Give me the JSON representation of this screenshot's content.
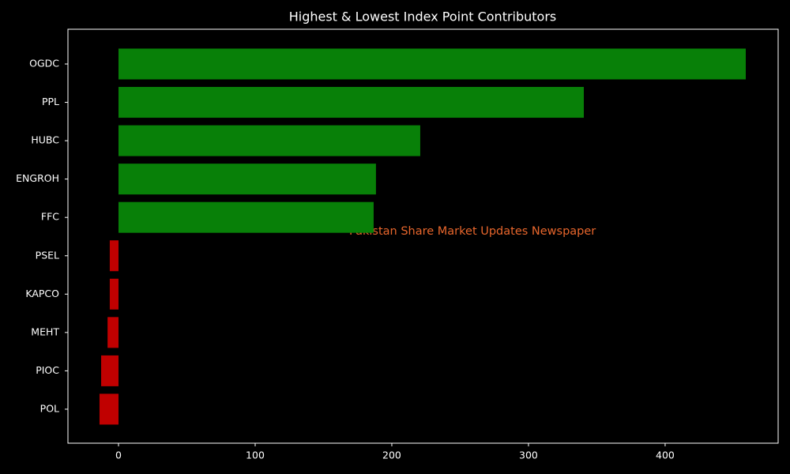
{
  "chart_data": {
    "type": "barh",
    "title": "Highest & Lowest Index Point Contributors",
    "categories": [
      "OGDC",
      "PPL",
      "HUBC",
      "ENGROH",
      "FFC",
      "PSEL",
      "KAPCO",
      "MEHT",
      "PIOC",
      "POL"
    ],
    "values": [
      459,
      340.5,
      220.8,
      188.4,
      186.7,
      -6.4,
      -6.4,
      -8,
      -12.7,
      -13.9
    ],
    "colors": [
      "#088008",
      "#088008",
      "#088008",
      "#088008",
      "#088008",
      "#c00000",
      "#c00000",
      "#c00000",
      "#c00000",
      "#c00000"
    ],
    "xlim": [
      -37,
      482.7
    ],
    "xticks": [
      0,
      100,
      200,
      300,
      400
    ],
    "annotation": "Pakistan Share Market Updates Newspaper"
  }
}
